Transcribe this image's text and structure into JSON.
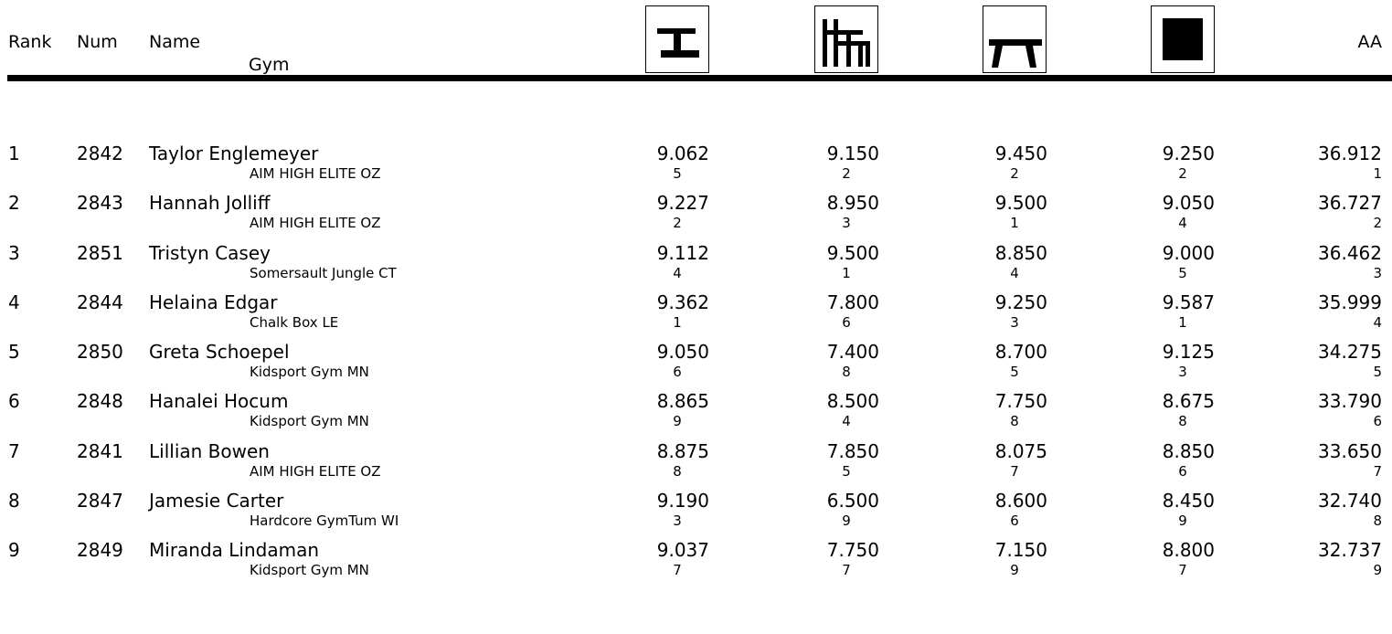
{
  "header": {
    "rank": "Rank",
    "num": "Num",
    "name": "Name",
    "gym": "Gym",
    "aa": "AA",
    "events": [
      {
        "icon": "uneven-bars-icon"
      },
      {
        "icon": "vault-icon"
      },
      {
        "icon": "balance-beam-icon"
      },
      {
        "icon": "floor-exercise-icon"
      }
    ]
  },
  "rows": [
    {
      "rank": "1",
      "num": "2842",
      "name": "Taylor Englemeyer",
      "gym": "AIM HIGH ELITE OZ",
      "scores": [
        {
          "score": "9.062",
          "place": "5"
        },
        {
          "score": "9.150",
          "place": "2"
        },
        {
          "score": "9.450",
          "place": "2"
        },
        {
          "score": "9.250",
          "place": "2"
        }
      ],
      "aa": {
        "score": "36.912",
        "place": "1"
      }
    },
    {
      "rank": "2",
      "num": "2843",
      "name": "Hannah Jolliff",
      "gym": "AIM HIGH ELITE OZ",
      "scores": [
        {
          "score": "9.227",
          "place": "2"
        },
        {
          "score": "8.950",
          "place": "3"
        },
        {
          "score": "9.500",
          "place": "1"
        },
        {
          "score": "9.050",
          "place": "4"
        }
      ],
      "aa": {
        "score": "36.727",
        "place": "2"
      }
    },
    {
      "rank": "3",
      "num": "2851",
      "name": "Tristyn Casey",
      "gym": "Somersault Jungle CT",
      "scores": [
        {
          "score": "9.112",
          "place": "4"
        },
        {
          "score": "9.500",
          "place": "1"
        },
        {
          "score": "8.850",
          "place": "4"
        },
        {
          "score": "9.000",
          "place": "5"
        }
      ],
      "aa": {
        "score": "36.462",
        "place": "3"
      }
    },
    {
      "rank": "4",
      "num": "2844",
      "name": "Helaina Edgar",
      "gym": "Chalk Box LE",
      "scores": [
        {
          "score": "9.362",
          "place": "1"
        },
        {
          "score": "7.800",
          "place": "6"
        },
        {
          "score": "9.250",
          "place": "3"
        },
        {
          "score": "9.587",
          "place": "1"
        }
      ],
      "aa": {
        "score": "35.999",
        "place": "4"
      }
    },
    {
      "rank": "5",
      "num": "2850",
      "name": "Greta Schoepel",
      "gym": "Kidsport Gym MN",
      "scores": [
        {
          "score": "9.050",
          "place": "6"
        },
        {
          "score": "7.400",
          "place": "8"
        },
        {
          "score": "8.700",
          "place": "5"
        },
        {
          "score": "9.125",
          "place": "3"
        }
      ],
      "aa": {
        "score": "34.275",
        "place": "5"
      }
    },
    {
      "rank": "6",
      "num": "2848",
      "name": "Hanalei Hocum",
      "gym": "Kidsport Gym MN",
      "scores": [
        {
          "score": "8.865",
          "place": "9"
        },
        {
          "score": "8.500",
          "place": "4"
        },
        {
          "score": "7.750",
          "place": "8"
        },
        {
          "score": "8.675",
          "place": "8"
        }
      ],
      "aa": {
        "score": "33.790",
        "place": "6"
      }
    },
    {
      "rank": "7",
      "num": "2841",
      "name": "Lillian Bowen",
      "gym": "AIM HIGH ELITE OZ",
      "scores": [
        {
          "score": "8.875",
          "place": "8"
        },
        {
          "score": "7.850",
          "place": "5"
        },
        {
          "score": "8.075",
          "place": "7"
        },
        {
          "score": "8.850",
          "place": "6"
        }
      ],
      "aa": {
        "score": "33.650",
        "place": "7"
      }
    },
    {
      "rank": "8",
      "num": "2847",
      "name": "Jamesie Carter",
      "gym": "Hardcore GymTum WI",
      "scores": [
        {
          "score": "9.190",
          "place": "3"
        },
        {
          "score": "6.500",
          "place": "9"
        },
        {
          "score": "8.600",
          "place": "6"
        },
        {
          "score": "8.450",
          "place": "9"
        }
      ],
      "aa": {
        "score": "32.740",
        "place": "8"
      }
    },
    {
      "rank": "9",
      "num": "2849",
      "name": "Miranda Lindaman",
      "gym": "Kidsport Gym MN",
      "scores": [
        {
          "score": "9.037",
          "place": "7"
        },
        {
          "score": "7.750",
          "place": "7"
        },
        {
          "score": "7.150",
          "place": "9"
        },
        {
          "score": "8.800",
          "place": "7"
        }
      ],
      "aa": {
        "score": "32.737",
        "place": "9"
      }
    }
  ]
}
